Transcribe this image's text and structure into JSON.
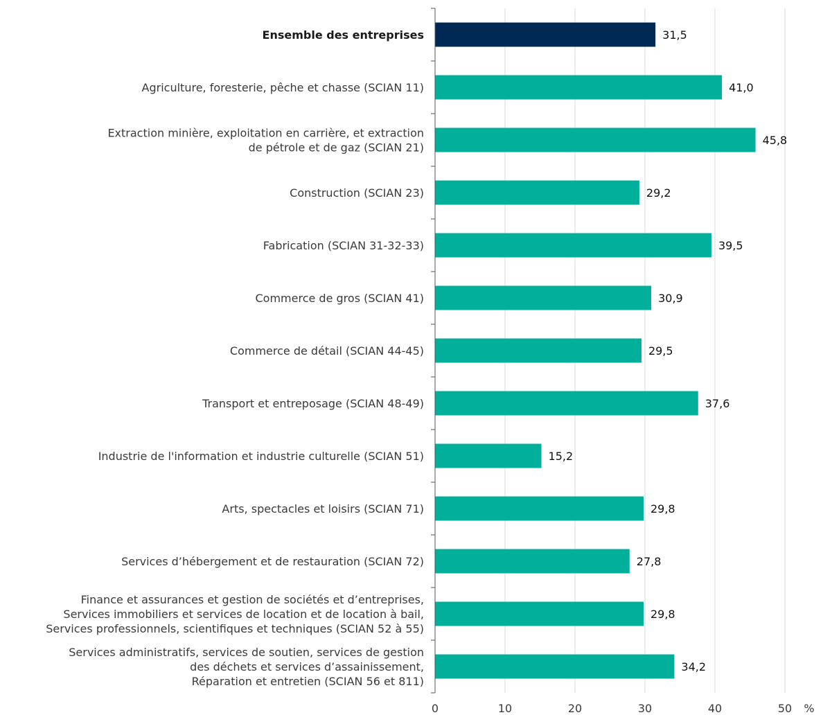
{
  "chart_data": {
    "type": "bar",
    "orientation": "horizontal",
    "unit": "%",
    "xlim": [
      0,
      50
    ],
    "xticks": [
      0,
      10,
      20,
      30,
      40,
      50
    ],
    "grid": true,
    "categories": [
      [
        "Ensemble des entreprises"
      ],
      [
        "Agriculture, foresterie, pêche et chasse (SCIAN 11)"
      ],
      [
        "Extraction minière, exploitation en carrière, et extraction",
        "de pétrole et de gaz (SCIAN 21)"
      ],
      [
        "Construction (SCIAN 23)"
      ],
      [
        "Fabrication (SCIAN 31-32-33)"
      ],
      [
        "Commerce de gros  (SCIAN 41)"
      ],
      [
        "Commerce de détail (SCIAN 44-45)"
      ],
      [
        "Transport et entreposage (SCIAN 48-49)"
      ],
      [
        "Industrie de l'information et industrie culturelle (SCIAN 51)"
      ],
      [
        "Arts, spectacles et loisirs (SCIAN 71)"
      ],
      [
        "Services d’hébergement et de restauration (SCIAN 72)"
      ],
      [
        "Finance et assurances et gestion de sociétés et d’entreprises,",
        "Services immobiliers et services de location et de location à bail,",
        "Services professionnels, scientifiques et techniques (SCIAN 52 à 55)"
      ],
      [
        "Services administratifs, services de soutien, services de gestion",
        "des déchets et services d’assainissement,",
        "Réparation et entretien (SCIAN 56 et 811)"
      ]
    ],
    "values": [
      31.5,
      41.0,
      45.8,
      29.2,
      39.5,
      30.9,
      29.5,
      37.6,
      15.2,
      29.8,
      27.8,
      29.8,
      34.2
    ],
    "value_labels": [
      "31,5",
      "41,0",
      "45,8",
      "29,2",
      "39,5",
      "30,9",
      "29,5",
      "37,6",
      "15,2",
      "29,8",
      "27,8",
      "29,8",
      "34,2"
    ],
    "highlight_index": 0,
    "colors": {
      "highlight": "#002855",
      "bar": "#00b09b",
      "grid": "#d9d9d9",
      "axis": "#555555"
    }
  }
}
